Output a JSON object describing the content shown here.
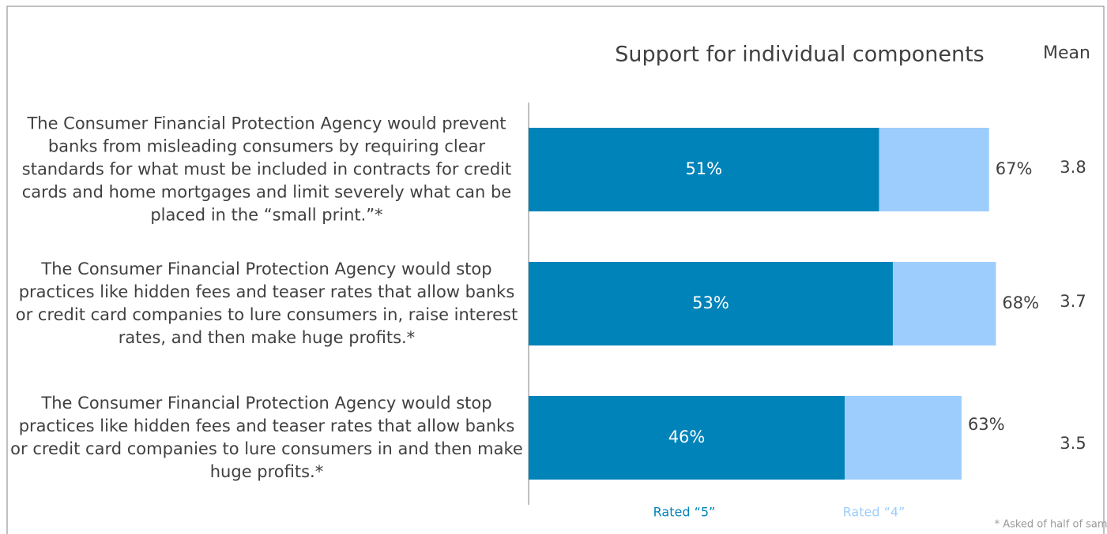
{
  "chart_data": {
    "type": "stacked_bar_horizontal",
    "title": "Support for individual components",
    "categories": [
      "The Consumer Financial Protection Agency would prevent banks from misleading consumers by requiring clear standards for what must be included in contracts for credit cards and home mortgages and limit severely what can be placed in the “small print.”*",
      "The Consumer Financial Protection Agency would stop practices like hidden fees and teaser rates that allow banks or credit card companies to lure consumers in, raise interest rates, and then make huge profits.*",
      "The Consumer Financial Protection Agency would stop practices like hidden fees and teaser rates that allow banks or credit card companies to lure consumers in and then make huge profits.*"
    ],
    "series": [
      {
        "name": "Rated “5”",
        "color": "#0083b9",
        "values": [
          51,
          53,
          46
        ],
        "value_labels": [
          "51%",
          "53%",
          "46%"
        ]
      },
      {
        "name": "Rated “4”",
        "color": "#9dcdfc",
        "values": [
          16,
          15,
          17
        ]
      }
    ],
    "totals": [
      67,
      68,
      63
    ],
    "total_labels": [
      "67%",
      "68%",
      "63%"
    ],
    "means_label": "Mean",
    "means": [
      3.8,
      3.7,
      3.5
    ],
    "xlim": [
      0,
      76
    ],
    "footnote": "* Asked of half of sample"
  }
}
